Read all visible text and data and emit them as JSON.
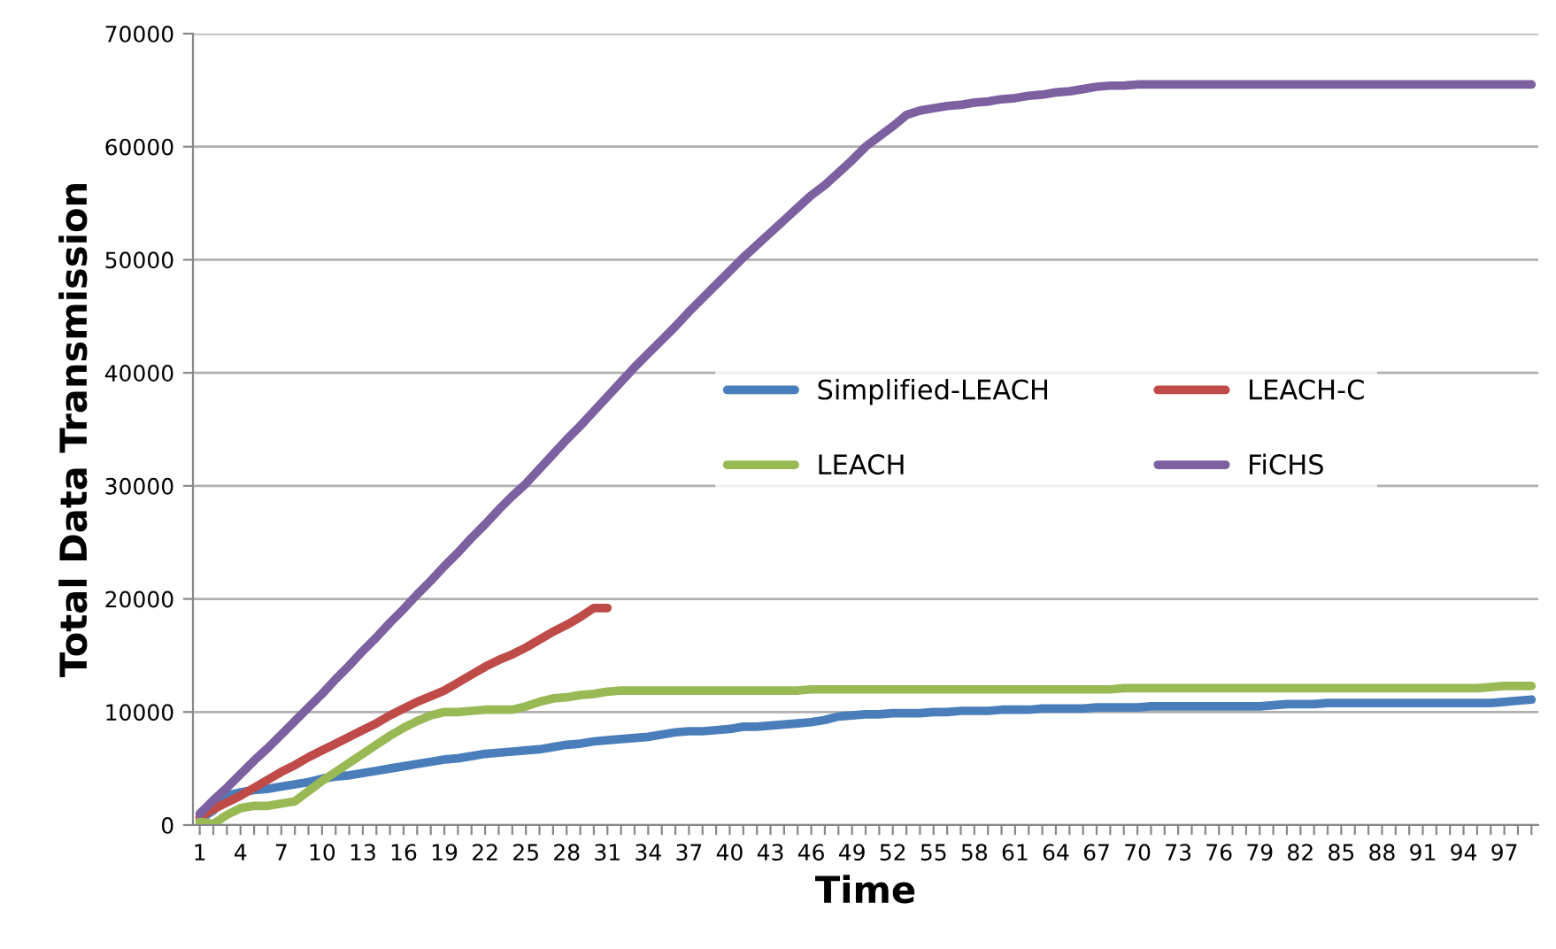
{
  "chart_data": {
    "type": "line",
    "xlabel": "Time",
    "ylabel": "Total Data Transmission",
    "categories": [
      "1",
      null,
      null,
      "4",
      null,
      null,
      "7",
      null,
      null,
      "10",
      null,
      null,
      "13",
      null,
      null,
      "16",
      null,
      null,
      "19",
      null,
      null,
      "22",
      null,
      null,
      "25",
      null,
      null,
      "28",
      null,
      null,
      "31",
      null,
      null,
      "34",
      null,
      null,
      "37",
      null,
      null,
      "40",
      null,
      null,
      "43",
      null,
      null,
      "46",
      null,
      null,
      "49",
      null,
      null,
      "52",
      null,
      null,
      "55",
      null,
      null,
      "58",
      null,
      null,
      "61",
      null,
      null,
      "64",
      null,
      null,
      "67",
      null,
      null,
      "70",
      null,
      null,
      "73",
      null,
      null,
      "76",
      null,
      null,
      "79",
      null,
      null,
      "82",
      null,
      null,
      "85",
      null,
      null,
      "88",
      null,
      null,
      "91",
      null,
      null,
      "94",
      null,
      null,
      "97",
      null,
      null
    ],
    "ylim": [
      0,
      70000
    ],
    "yticks": [
      0,
      10000,
      20000,
      30000,
      40000,
      50000,
      60000,
      70000
    ],
    "grid": "y",
    "legend": "right",
    "marker": "none",
    "line_style": "solid",
    "series": [
      {
        "name": "Simplified-LEACH",
        "color": "#4a7ebb",
        "values": [
          500,
          1300,
          2600,
          2900,
          3100,
          3200,
          3400,
          3600,
          3800,
          4100,
          4300,
          4400,
          4600,
          4800,
          5000,
          5200,
          5400,
          5600,
          5800,
          5900,
          6100,
          6300,
          6400,
          6500,
          6600,
          6700,
          6900,
          7100,
          7200,
          7400,
          7500,
          7600,
          7700,
          7800,
          8000,
          8200,
          8300,
          8300,
          8400,
          8500,
          8700,
          8700,
          8800,
          8900,
          9000,
          9100,
          9300,
          9600,
          9700,
          9800,
          9800,
          9900,
          9900,
          9900,
          10000,
          10000,
          10100,
          10100,
          10100,
          10200,
          10200,
          10200,
          10300,
          10300,
          10300,
          10300,
          10400,
          10400,
          10400,
          10400,
          10500,
          10500,
          10500,
          10500,
          10500,
          10500,
          10500,
          10500,
          10500,
          10600,
          10700,
          10700,
          10700,
          10800,
          10800,
          10800,
          10800,
          10800,
          10800,
          10800,
          10800,
          10800,
          10800,
          10800,
          10800,
          10800,
          10900,
          11000,
          11100
        ]
      },
      {
        "name": "LEACH-C",
        "color": "#be4b48",
        "values": [
          700,
          1400,
          2000,
          2600,
          3300,
          4000,
          4700,
          5300,
          6000,
          6600,
          7200,
          7800,
          8400,
          9000,
          9700,
          10300,
          10900,
          11400,
          11900,
          12600,
          13300,
          14000,
          14600,
          15100,
          15700,
          16400,
          17100,
          17700,
          18400,
          19200,
          19200,
          null,
          null,
          null,
          null,
          null,
          null,
          null,
          null,
          null,
          null,
          null,
          null,
          null,
          null,
          null,
          null,
          null,
          null,
          null,
          null,
          null,
          null,
          null,
          null,
          null,
          null,
          null,
          null,
          null,
          null,
          null,
          null,
          null,
          null,
          null,
          null,
          null,
          null,
          null,
          null,
          null,
          null,
          null,
          null,
          null,
          null,
          null,
          null,
          null,
          null,
          null,
          null,
          null,
          null,
          null,
          null,
          null,
          null,
          null,
          null,
          null,
          null,
          null,
          null,
          null,
          null,
          null,
          null
        ]
      },
      {
        "name": "LEACH",
        "color": "#98b954",
        "values": [
          300,
          100,
          900,
          1500,
          1700,
          1700,
          1900,
          2100,
          3000,
          3900,
          4700,
          5500,
          6300,
          7100,
          7900,
          8600,
          9200,
          9700,
          10000,
          10000,
          10100,
          10200,
          10200,
          10200,
          10500,
          10900,
          11200,
          11300,
          11500,
          11600,
          11800,
          11900,
          11900,
          11900,
          11900,
          11900,
          11900,
          11900,
          11900,
          11900,
          11900,
          11900,
          11900,
          11900,
          11900,
          12000,
          12000,
          12000,
          12000,
          12000,
          12000,
          12000,
          12000,
          12000,
          12000,
          12000,
          12000,
          12000,
          12000,
          12000,
          12000,
          12000,
          12000,
          12000,
          12000,
          12000,
          12000,
          12000,
          12100,
          12100,
          12100,
          12100,
          12100,
          12100,
          12100,
          12100,
          12100,
          12100,
          12100,
          12100,
          12100,
          12100,
          12100,
          12100,
          12100,
          12100,
          12100,
          12100,
          12100,
          12100,
          12100,
          12100,
          12100,
          12100,
          12100,
          12200,
          12300,
          12300,
          12300
        ]
      },
      {
        "name": "FiCHS",
        "color": "#7d60a0",
        "values": [
          1000,
          2200,
          3300,
          4500,
          5700,
          6800,
          8000,
          9200,
          10400,
          11600,
          12900,
          14100,
          15400,
          16600,
          17900,
          19100,
          20400,
          21600,
          22900,
          24100,
          25400,
          26600,
          27900,
          29100,
          30200,
          31500,
          32800,
          34100,
          35300,
          36600,
          37900,
          39200,
          40500,
          41700,
          42900,
          44100,
          45400,
          46600,
          47800,
          49000,
          50200,
          51300,
          52400,
          53500,
          54600,
          55700,
          56600,
          57700,
          58800,
          60000,
          60900,
          61800,
          62800,
          63200,
          63400,
          63600,
          63700,
          63900,
          64000,
          64200,
          64300,
          64500,
          64600,
          64800,
          64900,
          65100,
          65300,
          65400,
          65400,
          65500,
          65500,
          65500,
          65500,
          65500,
          65500,
          65500,
          65500,
          65500,
          65500,
          65500,
          65500,
          65500,
          65500,
          65500,
          65500,
          65500,
          65500,
          65500,
          65500,
          65500,
          65500,
          65500,
          65500,
          65500,
          65500,
          65500,
          65500,
          65500,
          65500
        ]
      }
    ]
  }
}
